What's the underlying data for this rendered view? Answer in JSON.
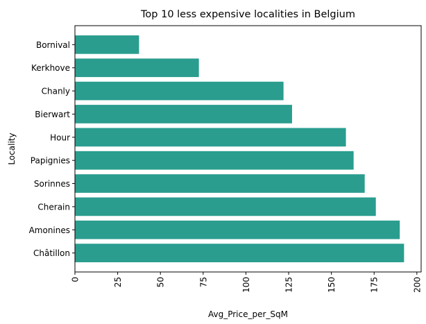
{
  "chart_data": {
    "type": "bar",
    "orientation": "horizontal",
    "title": "Top 10 less expensive localities in Belgium",
    "xlabel": "Avg_Price_per_SqM",
    "ylabel": "Locality",
    "categories": [
      "Bornival",
      "Kerkhove",
      "Chanly",
      "Bierwart",
      "Hour",
      "Papignies",
      "Sorinnes",
      "Cherain",
      "Amonines",
      "Châtillon"
    ],
    "values": [
      37.5,
      72.5,
      122,
      127,
      158.5,
      163,
      169.5,
      176,
      190,
      192.5
    ],
    "xlim": [
      0,
      202.5
    ],
    "xticks": [
      "0",
      "25",
      "50",
      "75",
      "100",
      "125",
      "150",
      "175",
      "200"
    ],
    "xtick_rotation": "vertical",
    "grid": false,
    "bar_color": "#2a9d8f"
  }
}
